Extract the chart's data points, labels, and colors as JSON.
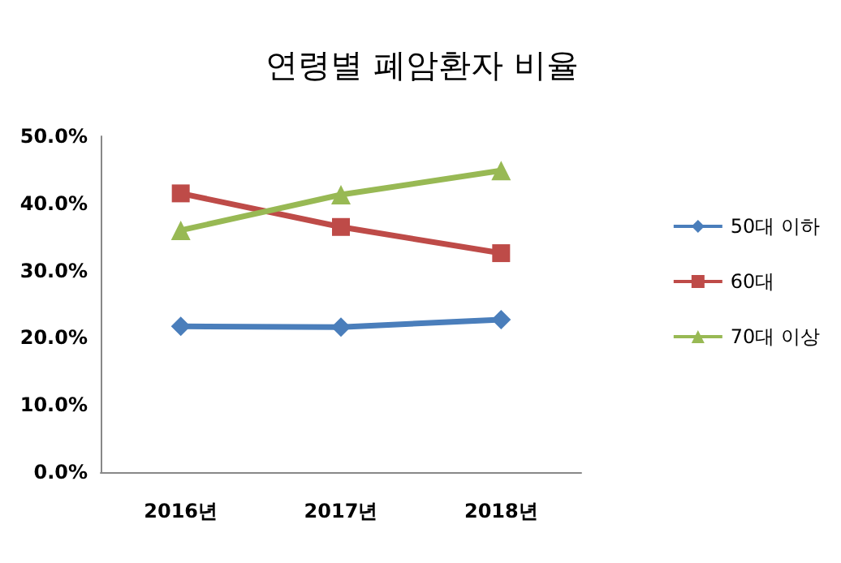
{
  "chart_data": {
    "type": "line",
    "title": "연령별 폐암환자 비율",
    "categories": [
      "2016년",
      "2017년",
      "2018년"
    ],
    "series": [
      {
        "name": "50대 이하",
        "color": "#4a7ebb",
        "marker": "diamond",
        "values": [
          21.7,
          21.6,
          22.7
        ]
      },
      {
        "name": "60대",
        "color": "#be4b48",
        "marker": "square",
        "values": [
          41.5,
          36.5,
          32.6
        ]
      },
      {
        "name": "70대 이상",
        "color": "#98b954",
        "marker": "triangle",
        "values": [
          36.0,
          41.3,
          44.9
        ]
      }
    ],
    "ylim": [
      0,
      50
    ],
    "yticks": [
      {
        "value": 0,
        "label": "0.0%"
      },
      {
        "value": 10,
        "label": "10.0%"
      },
      {
        "value": 20,
        "label": "20.0%"
      },
      {
        "value": 30,
        "label": "30.0%"
      },
      {
        "value": 40,
        "label": "40.0%"
      },
      {
        "value": 50,
        "label": "50.0%"
      }
    ],
    "grid": false,
    "legend": "right"
  }
}
